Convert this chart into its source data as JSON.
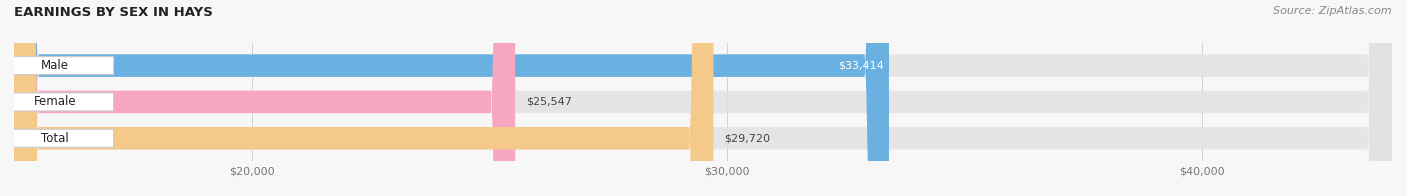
{
  "title": "EARNINGS BY SEX IN HAYS",
  "source": "Source: ZipAtlas.com",
  "categories": [
    "Male",
    "Female",
    "Total"
  ],
  "values": [
    33414,
    25547,
    29720
  ],
  "bar_colors": [
    "#6ab0e0",
    "#f7a8c0",
    "#f5c98a"
  ],
  "bar_bg_color": "#e2e2e2",
  "value_labels": [
    "$33,414",
    "$25,547",
    "$29,720"
  ],
  "xmin": 15000,
  "xmax": 44000,
  "xticks": [
    20000,
    30000,
    40000
  ],
  "xticklabels": [
    "$20,000",
    "$30,000",
    "$40,000"
  ],
  "bar_height": 0.62,
  "bar_gap": 0.18,
  "figsize": [
    14.06,
    1.96
  ],
  "dpi": 100,
  "background_color": "#f7f7f7",
  "title_fontsize": 9.5,
  "source_fontsize": 8,
  "label_fontsize": 8.5,
  "value_fontsize": 8,
  "tick_fontsize": 8
}
